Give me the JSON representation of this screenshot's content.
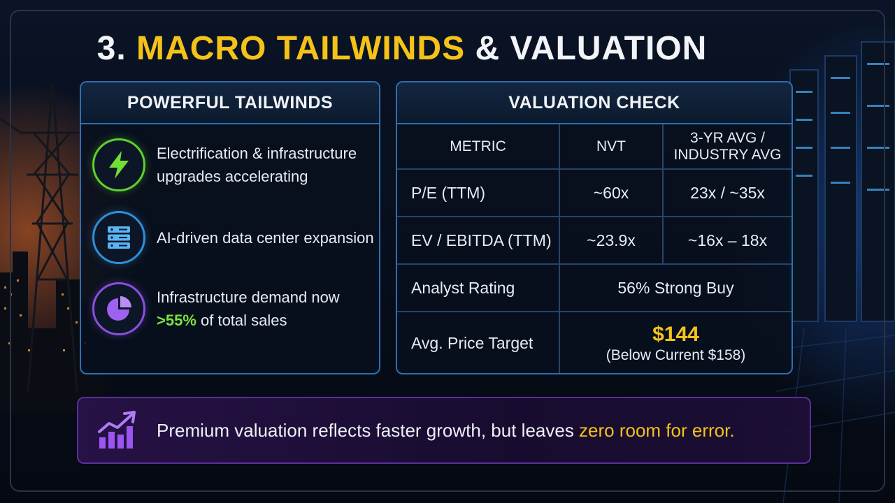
{
  "title": {
    "prefix": "3. ",
    "accent": "MACRO TAILWINDS",
    "suffix": " & VALUATION"
  },
  "tailwinds": {
    "heading": "POWERFUL TAILWINDS",
    "items": [
      {
        "icon": "lightning-bolt-icon",
        "line1": "Electrification & infrastructure",
        "line2": "upgrades accelerating",
        "color": "#5fd12a"
      },
      {
        "icon": "server-icon",
        "line1": "AI-driven data center expansion",
        "line2": "",
        "color": "#2f8fd8"
      },
      {
        "icon": "pie-chart-icon",
        "line1": "Infrastructure demand now",
        "highlight": ">55%",
        "line2_rest": " of total sales",
        "color": "#8a4fe0"
      }
    ]
  },
  "valuation": {
    "heading": "VALUATION CHECK",
    "columns": [
      "METRIC",
      "NVT",
      "3-YR AVG /",
      "INDUSTRY AVG"
    ],
    "rows": [
      {
        "metric": "P/E (TTM)",
        "nvt": "~60x",
        "avg": "23x / ~35x"
      },
      {
        "metric": "EV / EBITDA (TTM)",
        "nvt": "~23.9x",
        "avg": "~16x – 18x"
      }
    ],
    "rating": {
      "metric": "Analyst Rating",
      "value": "56% Strong Buy"
    },
    "target": {
      "metric": "Avg. Price Target",
      "value": "$144",
      "note": "(Below Current $158)"
    }
  },
  "banner": {
    "icon": "growth-chart-icon",
    "text": "Premium valuation reflects faster growth, but leaves ",
    "highlight": "zero room for error."
  },
  "colors": {
    "accent": "#f5c218",
    "green": "#7ee23a",
    "red": "#f0262c",
    "panel_border": "#2e6fb3",
    "banner_border": "#5a2f9a"
  }
}
